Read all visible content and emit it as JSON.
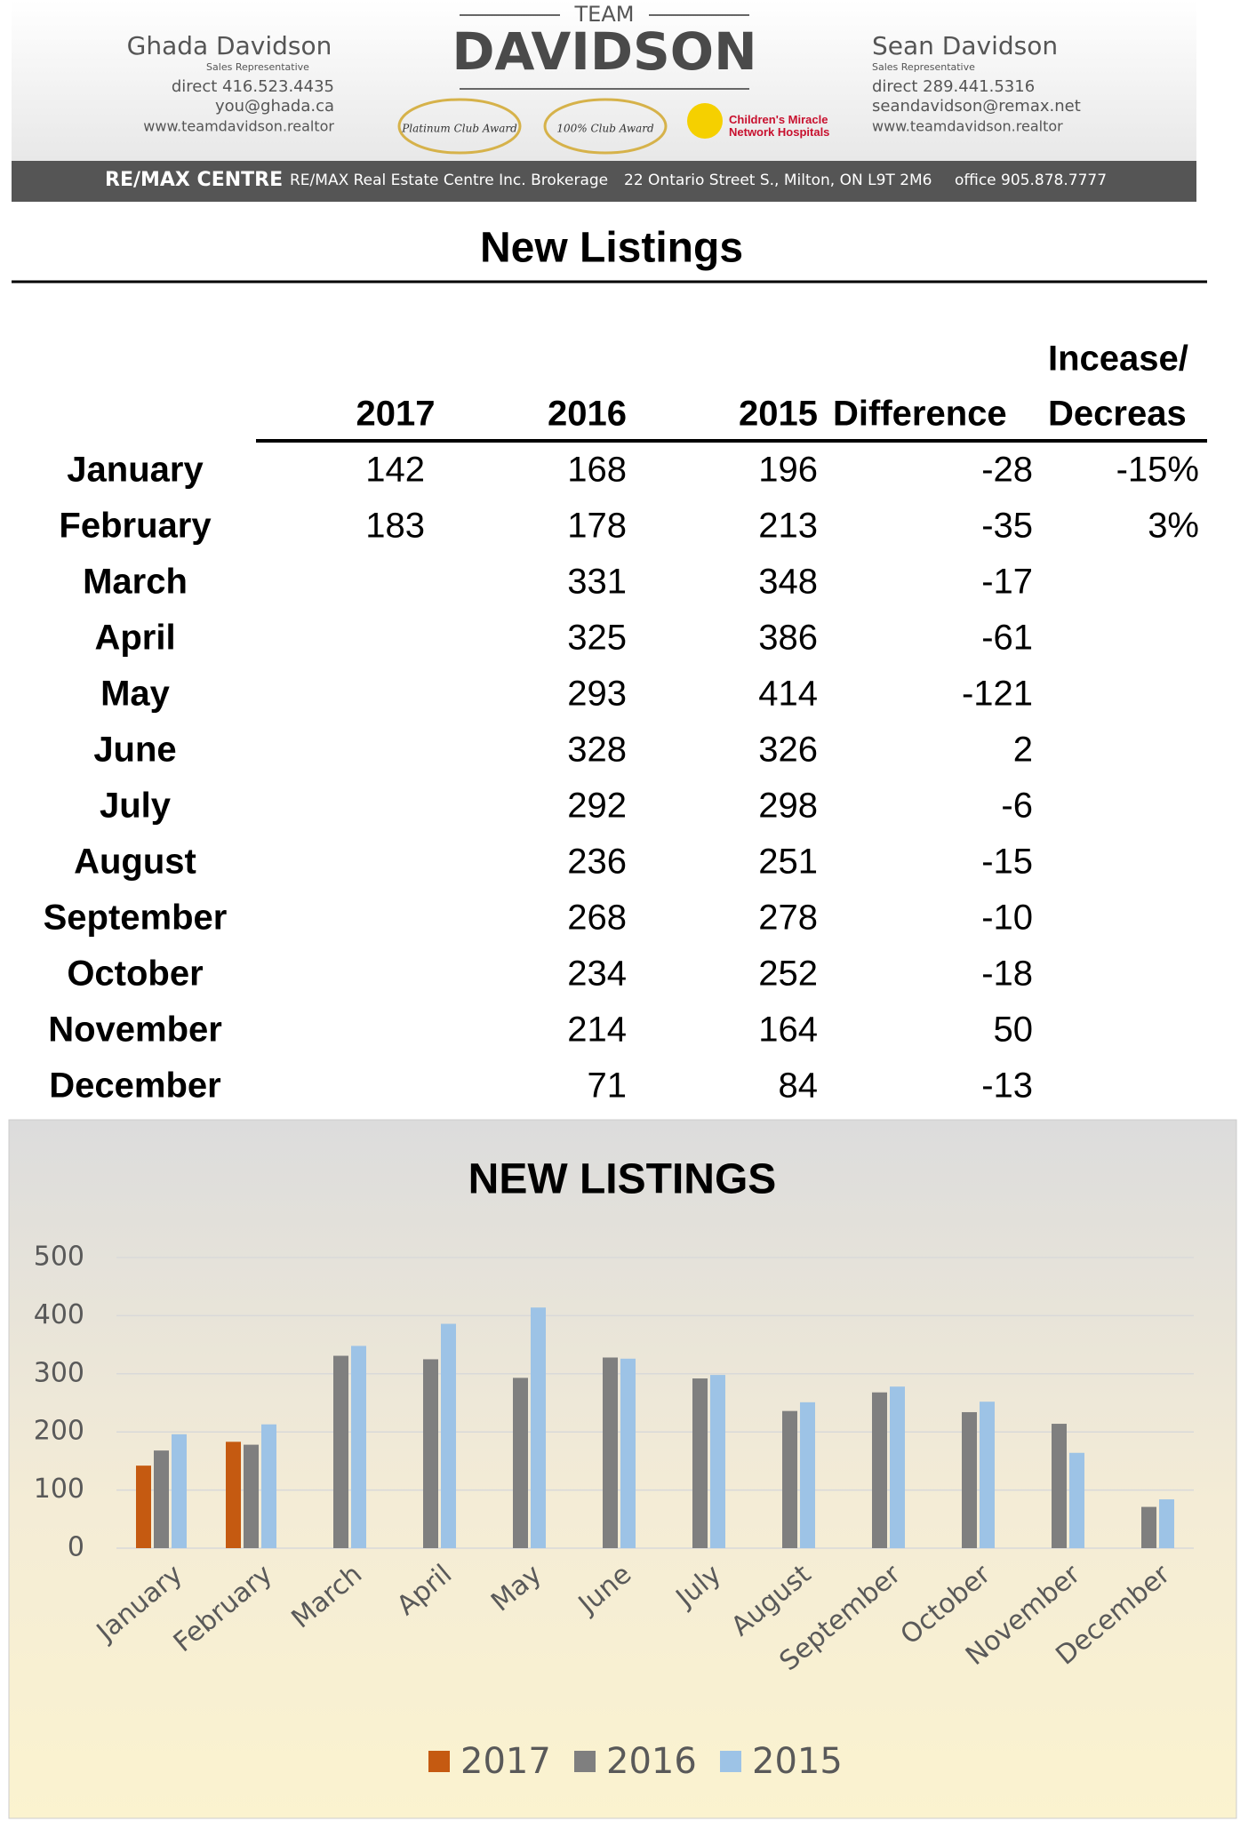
{
  "header": {
    "left": {
      "name": "Ghada Davidson",
      "role": "Sales Representative",
      "phone": "direct 416.523.4435",
      "email": "you@ghada.ca",
      "web": "www.teamdavidson.realtor"
    },
    "center": {
      "team": "TEAM",
      "name": "DAVIDSON",
      "award1": "Platinum Club Award",
      "award2": "100% Club Award",
      "charity": "Children's Miracle Network Hospitals"
    },
    "right": {
      "name": "Sean Davidson",
      "role": "Sales Representative",
      "phone": "direct 289.441.5316",
      "email": "seandavidson@remax.net",
      "web": "www.teamdavidson.realtor"
    },
    "bar": {
      "brand": "RE/MAX CENTRE",
      "company": "RE/MAX Real Estate Centre Inc. Brokerage",
      "address": "22 Ontario Street S., Milton, ON L9T 2M6",
      "office": "office 905.878.7777"
    }
  },
  "title": "New Listings",
  "table": {
    "columns": [
      "2017",
      "2016",
      "2015",
      "Difference",
      [
        "Incease/",
        "Decreas"
      ]
    ],
    "rows": [
      [
        "January",
        142,
        168,
        196,
        -28,
        "-15%"
      ],
      [
        "February",
        183,
        178,
        213,
        -35,
        "3%"
      ],
      [
        "March",
        null,
        331,
        348,
        -17,
        null
      ],
      [
        "April",
        null,
        325,
        386,
        -61,
        null
      ],
      [
        "May",
        null,
        293,
        414,
        -121,
        null
      ],
      [
        "June",
        null,
        328,
        326,
        2,
        null
      ],
      [
        "July",
        null,
        292,
        298,
        -6,
        null
      ],
      [
        "August",
        null,
        236,
        251,
        -15,
        null
      ],
      [
        "September",
        null,
        268,
        278,
        -10,
        null
      ],
      [
        "October",
        null,
        234,
        252,
        -18,
        null
      ],
      [
        "November",
        null,
        214,
        164,
        50,
        null
      ],
      [
        "December",
        null,
        71,
        84,
        -13,
        null
      ]
    ]
  },
  "chart_data": {
    "type": "bar",
    "title": "NEW LISTINGS",
    "categories": [
      "January",
      "February",
      "March",
      "April",
      "May",
      "June",
      "July",
      "August",
      "September",
      "October",
      "November",
      "December"
    ],
    "series": [
      {
        "name": "2017",
        "color": "#c55a11",
        "values": [
          142,
          183,
          null,
          null,
          null,
          null,
          null,
          null,
          null,
          null,
          null,
          null
        ]
      },
      {
        "name": "2016",
        "color": "#7f7f7f",
        "values": [
          168,
          178,
          331,
          325,
          293,
          328,
          292,
          236,
          268,
          234,
          214,
          71
        ]
      },
      {
        "name": "2015",
        "color": "#9dc3e6",
        "values": [
          196,
          213,
          348,
          386,
          414,
          326,
          298,
          251,
          278,
          252,
          164,
          84
        ]
      }
    ],
    "ylim": [
      0,
      500
    ],
    "yticks": [
      0,
      100,
      200,
      300,
      400,
      500
    ],
    "grid": true,
    "legend": "bottom"
  }
}
